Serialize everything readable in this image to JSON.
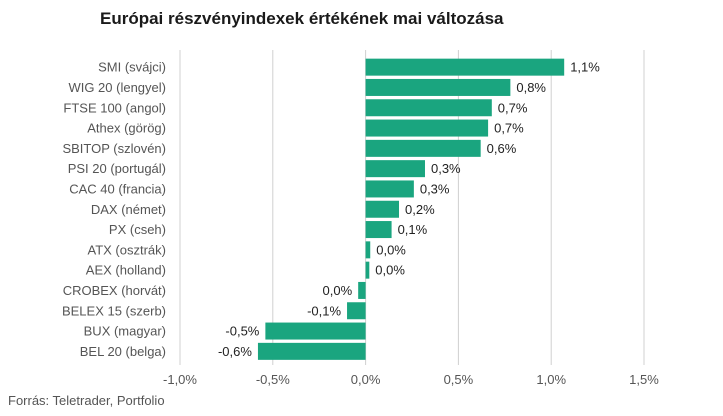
{
  "title": "Európai részvényindexek értékének mai változása",
  "source": "Forrás: Teletrader, Portfolio",
  "colors": {
    "bar": "#1aa57f",
    "grid": "#d0d0d0",
    "text": "#555555"
  },
  "chart_data": {
    "type": "bar",
    "orientation": "horizontal",
    "title": "Európai részvényindexek értékének mai változása",
    "categories": [
      "SMI (svájci)",
      "WIG 20 (lengyel)",
      "FTSE 100 (angol)",
      "Athex (görög)",
      "SBITOP (szlovén)",
      "PSI 20 (portugál)",
      "CAC 40 (francia)",
      "DAX (német)",
      "PX (cseh)",
      "ATX (osztrák)",
      "AEX (holland)",
      "CROBEX (horvát)",
      "BELEX 15 (szerb)",
      "BUX (magyar)",
      "BEL 20 (belga)"
    ],
    "values": [
      1.07,
      0.78,
      0.68,
      0.66,
      0.62,
      0.32,
      0.26,
      0.18,
      0.14,
      0.025,
      0.02,
      -0.04,
      -0.1,
      -0.54,
      -0.58
    ],
    "data_labels": [
      "1,1%",
      "0,8%",
      "0,7%",
      "0,7%",
      "0,6%",
      "0,3%",
      "0,3%",
      "0,2%",
      "0,1%",
      "0,0%",
      "0,0%",
      "0,0%",
      "-0,1%",
      "-0,5%",
      "-0,6%"
    ],
    "xlim": [
      -1.0,
      1.5
    ],
    "xticks": [
      -1.0,
      -0.5,
      0.0,
      0.5,
      1.0,
      1.5
    ],
    "xtick_labels": [
      "-1,0%",
      "-0,5%",
      "0,0%",
      "0,5%",
      "1,0%",
      "1,5%"
    ],
    "grid": "vertical",
    "legend": "none"
  }
}
